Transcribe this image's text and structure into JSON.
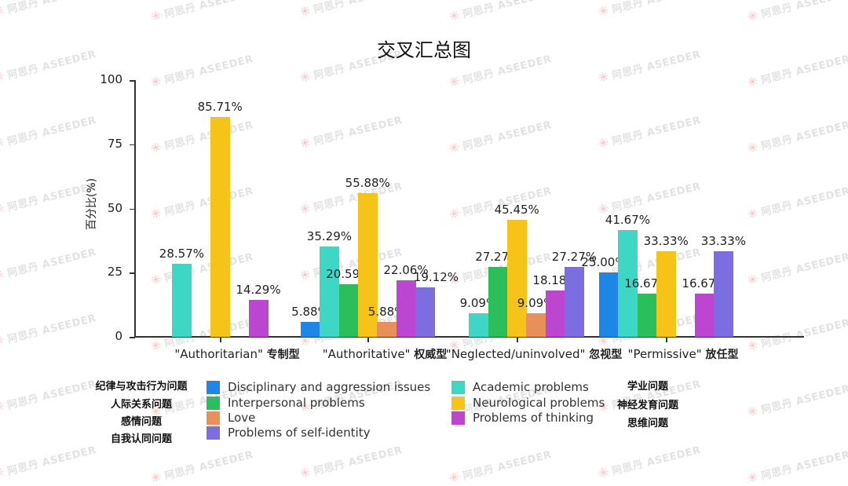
{
  "chart_data": {
    "type": "bar",
    "title": "交叉汇总图",
    "xlabel": "",
    "ylabel": "百分比(%)",
    "ylim": [
      0,
      100
    ],
    "yticks": [
      0,
      25,
      50,
      75,
      100
    ],
    "grid": false,
    "legend_position": "bottom",
    "categories": [
      "\"Authoritarian\" 专制型",
      "\"Authoritative\" 权威型",
      "\"Neglected/uninvolved\" 忽视型",
      "\"Permissive\" 放任型"
    ],
    "series": [
      {
        "name": "Disciplinary and aggression issues",
        "name_cn": "纪律与攻击行为问题",
        "color": "#1e86e6",
        "values": [
          null,
          5.88,
          null,
          25.0
        ]
      },
      {
        "name": "Academic problems",
        "name_cn": "学业问题",
        "color": "#3ed6c4",
        "values": [
          28.57,
          35.29,
          9.09,
          41.67
        ]
      },
      {
        "name": "Interpersonal problems",
        "name_cn": "人际关系问题",
        "color": "#2bbf5b",
        "values": [
          null,
          20.59,
          27.27,
          16.67
        ]
      },
      {
        "name": "Neurological problems",
        "name_cn": "神经发育问题",
        "color": "#f6c419",
        "values": [
          85.71,
          55.88,
          45.45,
          33.33
        ]
      },
      {
        "name": "Love",
        "name_cn": "感情问题",
        "color": "#e98f59",
        "values": [
          null,
          5.88,
          9.09,
          null
        ]
      },
      {
        "name": "Problems of thinking",
        "name_cn": "思维问题",
        "color": "#bc46d1",
        "values": [
          14.29,
          22.06,
          18.18,
          16.67
        ]
      },
      {
        "name": "Problems of self-identity",
        "name_cn": "自我认同问题",
        "color": "#7c6de3",
        "values": [
          null,
          19.12,
          27.27,
          33.33
        ]
      }
    ]
  },
  "header": {
    "title": "交叉汇总图"
  },
  "axis": {
    "ylabel": "百分比(%)",
    "yticks": [
      "0",
      "25",
      "50",
      "75",
      "100"
    ],
    "xcategories": [
      {
        "en": "\"Authoritarian\"",
        "cn": "专制型"
      },
      {
        "en": "\"Authoritative\"",
        "cn": "权威型"
      },
      {
        "en": "\"Neglected/uninvolved\"",
        "cn": "忽视型"
      },
      {
        "en": "\"Permissive\"",
        "cn": "放任型"
      }
    ]
  },
  "legend": {
    "left_cn": [
      "纪律与攻击行为问题",
      "人际关系问题",
      "感情问题",
      "自我认同问题"
    ],
    "left_items": [
      {
        "label": "Disciplinary and aggression issues",
        "color": "#1e86e6"
      },
      {
        "label": "Interpersonal problems",
        "color": "#2bbf5b"
      },
      {
        "label": "Love",
        "color": "#e98f59"
      },
      {
        "label": "Problems of self-identity",
        "color": "#7c6de3"
      }
    ],
    "right_items": [
      {
        "label": "Academic problems",
        "color": "#3ed6c4"
      },
      {
        "label": "Neurological problems",
        "color": "#f6c419"
      },
      {
        "label": "Problems of thinking",
        "color": "#bc46d1"
      }
    ],
    "right_cn": [
      "学业问题",
      "神经发育问题",
      "思维问题"
    ]
  },
  "watermark": {
    "text": "阿思丹 ASEEDER"
  }
}
